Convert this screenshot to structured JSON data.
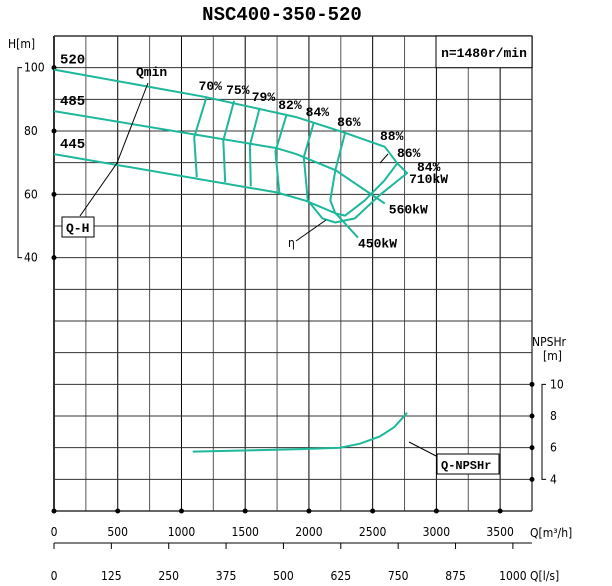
{
  "chart_data": {
    "type": "line",
    "title": "NSC400-350-520",
    "speed_label": "n=1480r/min",
    "x_axis": {
      "label": "Q[m³/h]",
      "range": [
        0,
        3750
      ],
      "ticks": [
        0,
        500,
        1000,
        1500,
        2000,
        2500,
        3000,
        3500
      ],
      "grid_step": 250
    },
    "x2_axis": {
      "label": "Q[l/s]",
      "ticks": [
        0,
        125,
        250,
        375,
        500,
        625,
        750,
        875,
        1000
      ]
    },
    "y_axis": {
      "label": "H[m]",
      "ticks": [
        100,
        80,
        60,
        40
      ]
    },
    "y2_axis": {
      "label_line1": "NPSHr",
      "label_line2": "[m]",
      "ticks": [
        10,
        8,
        6,
        4
      ]
    },
    "grid": true,
    "curve_color": "#1db89a",
    "head_curves": [
      {
        "name": "520",
        "power": "710kW",
        "points": [
          [
            0,
            99.4
          ],
          [
            1180,
            90.8
          ],
          [
            1900,
            84.4
          ],
          [
            2285,
            79.4
          ],
          [
            2595,
            75
          ],
          [
            2693,
            69.8
          ]
        ]
      },
      {
        "name": "485",
        "power": "560kW",
        "points": [
          [
            0,
            86.3
          ],
          [
            1745,
            74.6
          ],
          [
            1900,
            72.7
          ],
          [
            2210,
            67.6
          ],
          [
            2595,
            57.1
          ]
        ]
      },
      {
        "name": "445",
        "power": "450kW",
        "points": [
          [
            0,
            72.7
          ],
          [
            1745,
            60.6
          ],
          [
            1975,
            58
          ],
          [
            2210,
            54
          ],
          [
            2385,
            46.3
          ]
        ]
      }
    ],
    "efficiency_curves": [
      {
        "label": "70%",
        "points": [
          [
            1197,
            90.8
          ],
          [
            1100,
            78
          ],
          [
            1120,
            65.4
          ]
        ]
      },
      {
        "label": "75%",
        "points": [
          [
            1413,
            89.5
          ],
          [
            1328,
            77
          ],
          [
            1343,
            63.8
          ]
        ]
      },
      {
        "label": "79%",
        "points": [
          [
            1614,
            87.3
          ],
          [
            1537,
            75.5
          ],
          [
            1544,
            62.5
          ]
        ]
      },
      {
        "label": "82%",
        "points": [
          [
            1822,
            84.8
          ],
          [
            1737,
            73.5
          ],
          [
            1768,
            60.3
          ]
        ]
      },
      {
        "label": "84%",
        "points": [
          [
            2037,
            82.5
          ],
          [
            1960,
            71.7
          ],
          [
            1991,
            58.1
          ],
          [
            2106,
            52.4
          ],
          [
            2207,
            51.1
          ],
          [
            2361,
            52.4
          ],
          [
            2554,
            59.7
          ],
          [
            2770,
            66.7
          ],
          [
            2693,
            69.8
          ]
        ]
      },
      {
        "label": "86%",
        "points": [
          [
            2284,
            79.4
          ],
          [
            2207,
            67.6
          ],
          [
            2168,
            58.1
          ],
          [
            2207,
            54
          ],
          [
            2284,
            53.3
          ],
          [
            2438,
            58.1
          ],
          [
            2593,
            64.4
          ],
          [
            2693,
            69.8
          ]
        ]
      }
    ],
    "right_labels": [
      "88%",
      "86%",
      "84%"
    ],
    "npshr_curve": {
      "points": [
        [
          1088,
          5.75
        ],
        [
          1898,
          5.9
        ],
        [
          2245,
          6.0
        ],
        [
          2400,
          6.25
        ],
        [
          2554,
          6.7
        ],
        [
          2670,
          7.3
        ],
        [
          2770,
          8.2
        ]
      ]
    },
    "annotations": {
      "qmin": "Qmin",
      "qh": "Q-H",
      "eta": "η",
      "npsh": "Q-NPSHr"
    }
  }
}
